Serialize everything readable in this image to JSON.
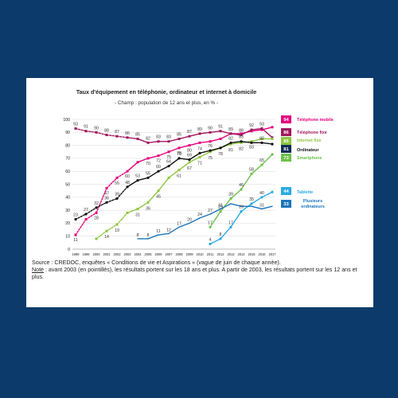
{
  "colors": {
    "background": "#0c3a6b",
    "card": "#ffffff",
    "telephone_mobile": "#e5007d",
    "telephone_fixe": "#a0185e",
    "internet_fixe": "#8dc63f",
    "ordinateur": "#111111",
    "smartphone": "#6cc24a",
    "tablette": "#29abe2",
    "plusieurs_ordinateurs": "#1b75bb"
  },
  "chart_data": {
    "type": "line",
    "title": "Taux d'équipement en téléphonie, ordinateur et internet à domicile",
    "subtitle": "- Champ : population de 12 ans et plus, en % -",
    "ylim": [
      0,
      100
    ],
    "yticks": [
      "0",
      "10",
      "20",
      "30",
      "40",
      "50",
      "60",
      "70",
      "80",
      "90",
      "100"
    ],
    "grid": true,
    "legend": "right",
    "x": [
      "1998",
      "1999",
      "2000",
      "2001",
      "2002",
      "2003",
      "2004",
      "2005",
      "2006",
      "2007",
      "2008",
      "2009",
      "2010",
      "2011",
      "2012",
      "2013",
      "2014",
      "2015",
      "2016",
      "2017"
    ],
    "series": [
      {
        "name": "Téléphone mobile",
        "key": "telephone_mobile",
        "values": [
          11,
          23,
          28,
          47,
          55,
          60,
          67,
          70,
          72,
          75,
          78,
          80,
          82,
          83,
          85,
          89,
          89,
          91,
          92,
          94
        ],
        "labels": [
          "11",
          "",
          "28",
          "47",
          "55",
          "60",
          "",
          "70",
          "72",
          "75",
          "78",
          "80",
          "",
          "",
          "",
          "",
          "",
          "",
          "",
          ""
        ],
        "dashed_until": 2003,
        "end_label": "94",
        "marker": "square"
      },
      {
        "name": "Téléphone fixe",
        "key": "telephone_fixe",
        "values": [
          93,
          91,
          90,
          88,
          87,
          86,
          85,
          82,
          83,
          83,
          85,
          87,
          89,
          90,
          91,
          89,
          88,
          92,
          93,
          86
        ],
        "labels": [
          "93",
          "91",
          "90",
          "88",
          "87",
          "86",
          "85",
          "82",
          "83",
          "83",
          "85",
          "87",
          "89",
          "90",
          "91",
          "89",
          "88",
          "92",
          "93",
          ""
        ],
        "dashed_until": 2003,
        "end_label": "86",
        "marker": "square"
      },
      {
        "name": "Internet fixe",
        "key": "internet_fixe",
        "values": [
          null,
          null,
          8,
          14,
          19,
          28,
          31,
          36,
          45,
          55,
          61,
          67,
          71,
          75,
          78,
          81,
          82,
          83,
          85,
          85
        ],
        "labels": [
          "",
          "",
          "",
          "14",
          "19",
          "",
          "31",
          "36",
          "45",
          "",
          "61",
          "67",
          "71",
          "75",
          "78",
          "81",
          "82",
          "83",
          "",
          ""
        ],
        "dashed_until": 2003,
        "end_label": "85",
        "marker": "square"
      },
      {
        "name": "Ordinateur",
        "key": "ordinateur",
        "values": [
          23,
          27,
          32,
          36,
          39,
          48,
          53,
          55,
          60,
          64,
          70,
          69,
          74,
          76,
          78,
          82,
          83,
          82,
          82,
          81
        ],
        "labels": [
          "23",
          "27",
          "32",
          "36",
          "39",
          "48",
          "53",
          "55",
          "60",
          "64",
          "70",
          "69",
          "74",
          "76",
          "",
          "82",
          "83",
          "",
          "82",
          ""
        ],
        "dashed_until": 2003,
        "end_label": "81",
        "marker": "circle"
      },
      {
        "name": "Smartphone",
        "key": "smartphone",
        "values": [
          null,
          null,
          null,
          null,
          null,
          null,
          null,
          null,
          null,
          null,
          null,
          null,
          null,
          17,
          29,
          39,
          46,
          58,
          65,
          73
        ],
        "labels": [
          "",
          "",
          "",
          "",
          "",
          "",
          "",
          "",
          "",
          "",
          "",
          "",
          "",
          "17",
          "29",
          "39",
          "46",
          "58",
          "65",
          ""
        ],
        "dashed_until": null,
        "end_label": "73",
        "marker": "circle"
      },
      {
        "name": "Tablette",
        "key": "tablette",
        "values": [
          null,
          null,
          null,
          null,
          null,
          null,
          null,
          null,
          null,
          null,
          null,
          null,
          null,
          4,
          8,
          17,
          29,
          35,
          40,
          44
        ],
        "labels": [
          "",
          "",
          "",
          "",
          "",
          "",
          "",
          "",
          "",
          "",
          "",
          "",
          "",
          "4",
          "8",
          "17",
          "29",
          "35",
          "40",
          ""
        ],
        "dashed_until": null,
        "end_label": "44",
        "marker": "circle"
      },
      {
        "name": "Plusieurs ordinateurs",
        "key": "plusieurs_ordinateurs",
        "values": [
          null,
          null,
          null,
          null,
          null,
          null,
          8,
          8,
          11,
          12,
          17,
          20,
          24,
          27,
          31,
          35,
          33,
          33,
          31,
          33
        ],
        "labels": [
          "",
          "",
          "",
          "",
          "",
          "",
          "8",
          "8",
          "11",
          "12",
          "17",
          "20",
          "24",
          "27",
          "31",
          "",
          "",
          "",
          "31",
          ""
        ],
        "dashed_until": null,
        "end_label": "33",
        "marker": "none"
      }
    ],
    "legend_entries": [
      {
        "key": "telephone_mobile",
        "text": "Téléphone mobile"
      },
      {
        "key": "telephone_fixe",
        "text": "Téléphone fixe"
      },
      {
        "key": "internet_fixe",
        "text": "Internet fixe"
      },
      {
        "key": "ordinateur",
        "text": "Ordinateur"
      },
      {
        "key": "smartphone",
        "text": "Smartphone"
      },
      {
        "key": "tablette",
        "text": "Tablette"
      },
      {
        "key": "plusieurs_ordinateurs",
        "text": "Plusieurs ordinateurs"
      }
    ]
  },
  "notes": {
    "source_label": "Source",
    "source_text": " : CREDOC, enquêtes « Conditions de vie et Aspirations » (vague de juin de chaque année).",
    "note_label": "Note",
    "note_text": " : avant 2003 (en pointillés), les résultats portent sur les 18 ans et plus. A partir de 2003, les résultats portent sur les 12 ans et plus."
  }
}
